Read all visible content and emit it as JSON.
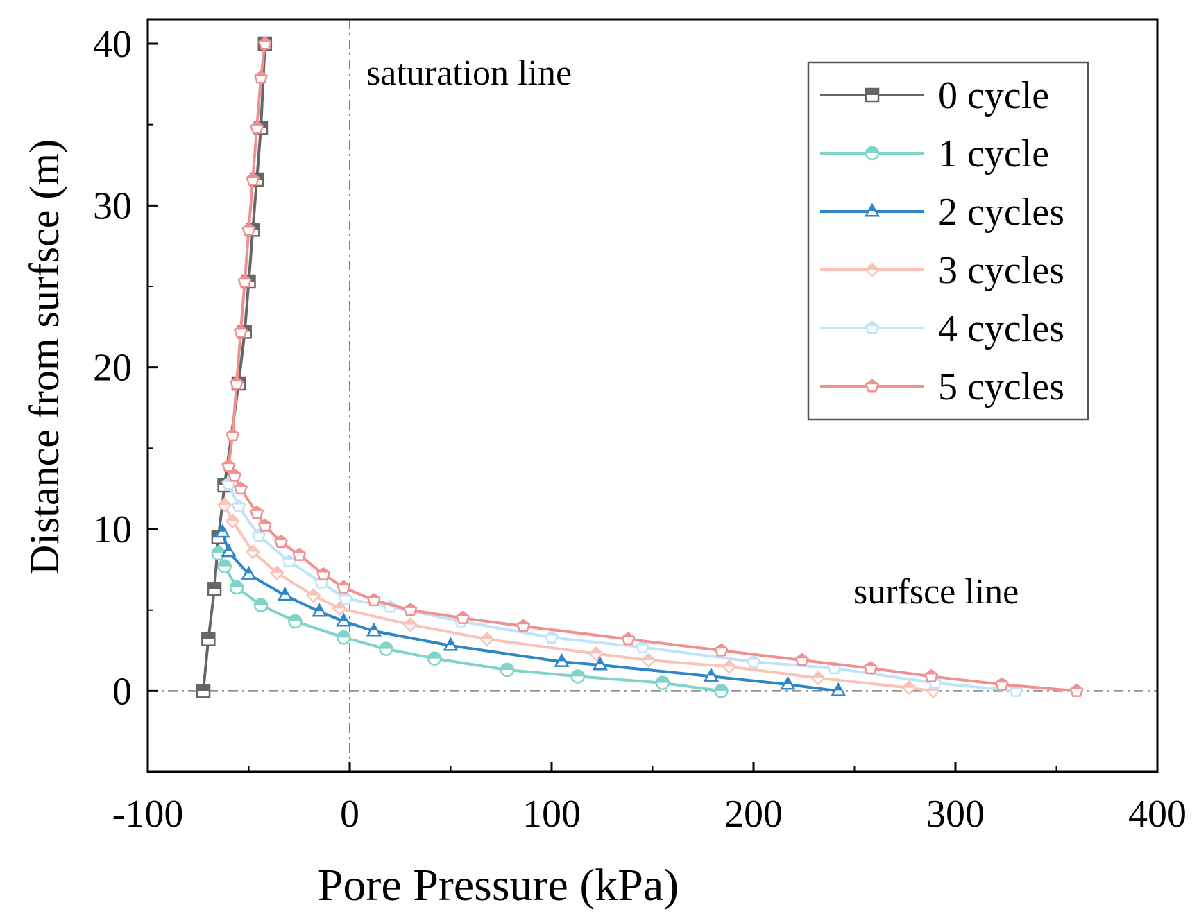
{
  "chart_data": {
    "type": "line",
    "title": "",
    "xlabel": "Pore Pressure (kPa)",
    "ylabel": "Distance from surfsce (m)",
    "xlim": [
      -100,
      400
    ],
    "ylim": [
      -5,
      41.5
    ],
    "xticks": [
      -100,
      0,
      100,
      200,
      300,
      400
    ],
    "xtick_labels": [
      "-100",
      "0",
      "100",
      "200",
      "300",
      "400"
    ],
    "yticks": [
      0,
      10,
      20,
      30,
      40
    ],
    "ytick_labels": [
      "0",
      "10",
      "20",
      "30",
      "40"
    ],
    "grid": false,
    "legend_position": "top-right",
    "annotations": {
      "saturation": "saturation line",
      "surface": "surfsce line"
    },
    "reference_lines": {
      "saturation_x": 0,
      "surface_y": 0
    },
    "colors": {
      "axis": "#000000",
      "reference": "#808080"
    },
    "series": [
      {
        "name": "0 cycle",
        "color": "#666666",
        "marker": "square",
        "x": [
          -72.5,
          -70,
          -67,
          -65,
          -62,
          -55,
          -52,
          -50,
          -48,
          -46,
          -44,
          -42
        ],
        "y": [
          0,
          3.2,
          6.3,
          9.5,
          12.7,
          19,
          22.2,
          25.3,
          28.5,
          31.6,
          34.8,
          40
        ]
      },
      {
        "name": "1 cycle",
        "color": "#7FD3C8",
        "marker": "circle",
        "x": [
          -65,
          -62,
          -56,
          -44,
          -27,
          -3,
          18,
          42,
          78,
          113,
          155,
          184
        ],
        "y": [
          8.5,
          7.7,
          6.4,
          5.3,
          4.3,
          3.3,
          2.6,
          2.0,
          1.3,
          0.9,
          0.5,
          0
        ]
      },
      {
        "name": "2 cycles",
        "color": "#2E86C8",
        "marker": "triangle",
        "x": [
          -63,
          -60,
          -50,
          -32,
          -15,
          -3,
          12,
          50,
          105,
          124,
          179,
          217,
          242
        ],
        "y": [
          9.8,
          8.6,
          7.2,
          5.9,
          4.9,
          4.3,
          3.7,
          2.8,
          1.8,
          1.6,
          0.9,
          0.4,
          0
        ]
      },
      {
        "name": "3 cycles",
        "color": "#FBC2B8",
        "marker": "diamond",
        "x": [
          -62,
          -58,
          -48,
          -36,
          -18,
          -5,
          30,
          68,
          122,
          148,
          188,
          232,
          277,
          289
        ],
        "y": [
          11.5,
          10.5,
          8.6,
          7.3,
          5.9,
          5.1,
          4.1,
          3.2,
          2.3,
          1.9,
          1.5,
          0.8,
          0.2,
          0
        ]
      },
      {
        "name": "4 cycles",
        "color": "#BFE3F8",
        "marker": "pentagon",
        "x": [
          -60,
          -55,
          -45,
          -30,
          -14,
          -2,
          20,
          55,
          100,
          145,
          200,
          240,
          290,
          330
        ],
        "y": [
          12.8,
          11.4,
          9.6,
          8.0,
          6.7,
          5.7,
          5.2,
          4.3,
          3.3,
          2.7,
          1.8,
          1.4,
          0.5,
          0
        ]
      },
      {
        "name": "5 cycles",
        "color": "#F09090",
        "marker": "pentagon",
        "x": [
          -42,
          -44,
          -46,
          -48,
          -50,
          -52,
          -54,
          -56,
          -58,
          -60,
          -57,
          -54,
          -46,
          -42,
          -34,
          -25,
          -13,
          -3,
          12,
          30,
          56,
          86,
          138,
          184,
          224,
          258,
          288,
          323,
          360
        ],
        "y": [
          40,
          37.9,
          34.8,
          31.6,
          28.5,
          25.3,
          22.2,
          19.0,
          15.8,
          13.9,
          13.3,
          12.5,
          11.0,
          10.2,
          9.2,
          8.4,
          7.2,
          6.4,
          5.6,
          5.0,
          4.5,
          4.0,
          3.2,
          2.5,
          1.9,
          1.4,
          0.9,
          0.4,
          0
        ]
      }
    ]
  }
}
